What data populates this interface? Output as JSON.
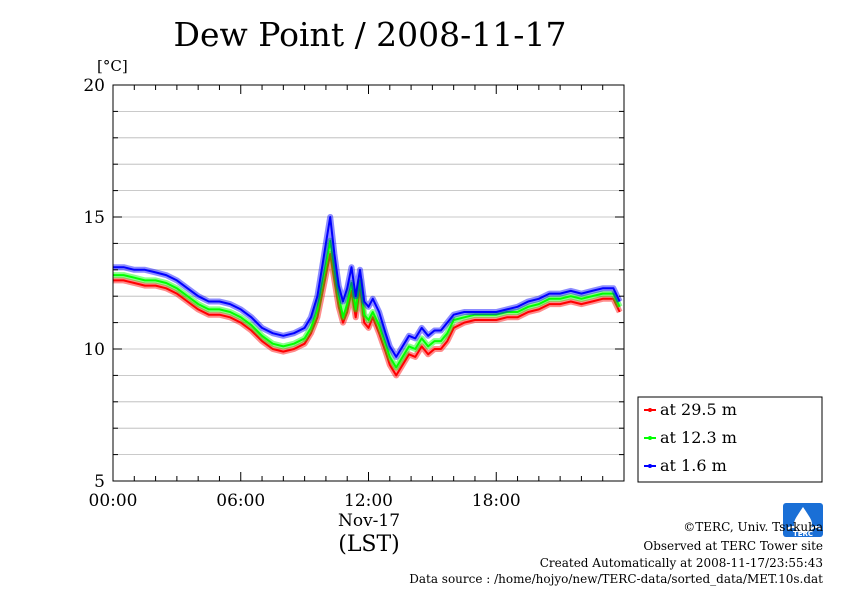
{
  "chart_data": {
    "type": "line",
    "title": "Dew Point / 2008-11-17",
    "unit_label": "[°C]",
    "xlabel_date": "Nov-17",
    "xlabel": "(LST)",
    "ylim": [
      5,
      20
    ],
    "xlim_hours": [
      0,
      24
    ],
    "y_ticks": [
      "5",
      "10",
      "15",
      "20"
    ],
    "y_tick_values": [
      5,
      10,
      15,
      20
    ],
    "x_ticks": [
      "00:00",
      "06:00",
      "12:00",
      "18:00"
    ],
    "x_tick_hours": [
      0,
      6,
      12,
      18
    ],
    "grid": true,
    "legend_position": "right",
    "series": [
      {
        "name": "at 29.5 m",
        "color": "#ff0000",
        "x": [
          0,
          0.5,
          1,
          1.5,
          2,
          2.5,
          3,
          3.5,
          4,
          4.5,
          5,
          5.5,
          6,
          6.5,
          7,
          7.5,
          8,
          8.5,
          9,
          9.3,
          9.6,
          9.8,
          10,
          10.2,
          10.4,
          10.6,
          10.8,
          11,
          11.2,
          11.4,
          11.6,
          11.8,
          12,
          12.2,
          12.5,
          12.8,
          13,
          13.3,
          13.6,
          13.9,
          14.2,
          14.5,
          14.8,
          15.1,
          15.4,
          15.7,
          16,
          16.5,
          17,
          17.5,
          18,
          18.5,
          19,
          19.5,
          20,
          20.5,
          21,
          21.5,
          22,
          22.5,
          23,
          23.5,
          23.8
        ],
        "y": [
          12.6,
          12.6,
          12.5,
          12.4,
          12.4,
          12.3,
          12.1,
          11.8,
          11.5,
          11.3,
          11.3,
          11.2,
          11.0,
          10.7,
          10.3,
          10.0,
          9.9,
          10.0,
          10.2,
          10.6,
          11.2,
          12.0,
          12.8,
          13.6,
          12.6,
          11.6,
          11.0,
          11.4,
          12.2,
          11.2,
          12.3,
          11.0,
          10.8,
          11.2,
          10.6,
          9.9,
          9.4,
          9.0,
          9.4,
          9.8,
          9.7,
          10.1,
          9.8,
          10.0,
          10.0,
          10.3,
          10.8,
          11.0,
          11.1,
          11.1,
          11.1,
          11.2,
          11.2,
          11.4,
          11.5,
          11.7,
          11.7,
          11.8,
          11.7,
          11.8,
          11.9,
          11.9,
          11.4
        ]
      },
      {
        "name": "at 12.3 m",
        "color": "#00ff00",
        "x": [
          0,
          0.5,
          1,
          1.5,
          2,
          2.5,
          3,
          3.5,
          4,
          4.5,
          5,
          5.5,
          6,
          6.5,
          7,
          7.5,
          8,
          8.5,
          9,
          9.3,
          9.6,
          9.8,
          10,
          10.2,
          10.4,
          10.6,
          10.8,
          11,
          11.2,
          11.4,
          11.6,
          11.8,
          12,
          12.2,
          12.5,
          12.8,
          13,
          13.3,
          13.6,
          13.9,
          14.2,
          14.5,
          14.8,
          15.1,
          15.4,
          15.7,
          16,
          16.5,
          17,
          17.5,
          18,
          18.5,
          19,
          19.5,
          20,
          20.5,
          21,
          21.5,
          22,
          22.5,
          23,
          23.5,
          23.8
        ],
        "y": [
          12.8,
          12.8,
          12.7,
          12.6,
          12.6,
          12.5,
          12.3,
          12.0,
          11.7,
          11.5,
          11.5,
          11.4,
          11.2,
          10.9,
          10.5,
          10.2,
          10.1,
          10.2,
          10.4,
          10.8,
          11.5,
          12.4,
          13.2,
          14.1,
          13.0,
          12.0,
          11.2,
          11.7,
          12.5,
          11.5,
          12.6,
          11.3,
          11.1,
          11.4,
          10.9,
          10.2,
          9.7,
          9.3,
          9.7,
          10.1,
          10.0,
          10.4,
          10.1,
          10.3,
          10.3,
          10.6,
          11.1,
          11.2,
          11.3,
          11.3,
          11.3,
          11.4,
          11.4,
          11.6,
          11.7,
          11.9,
          11.9,
          12.0,
          11.9,
          12.0,
          12.1,
          12.1,
          11.6
        ]
      },
      {
        "name": "at 1.6 m",
        "color": "#0000ff",
        "x": [
          0,
          0.5,
          1,
          1.5,
          2,
          2.5,
          3,
          3.5,
          4,
          4.5,
          5,
          5.5,
          6,
          6.5,
          7,
          7.5,
          8,
          8.5,
          9,
          9.3,
          9.6,
          9.8,
          10,
          10.2,
          10.4,
          10.6,
          10.8,
          11,
          11.2,
          11.4,
          11.6,
          11.8,
          12,
          12.2,
          12.5,
          12.8,
          13,
          13.3,
          13.6,
          13.9,
          14.2,
          14.5,
          14.8,
          15.1,
          15.4,
          15.7,
          16,
          16.5,
          17,
          17.5,
          18,
          18.5,
          19,
          19.5,
          20,
          20.5,
          21,
          21.5,
          22,
          22.5,
          23,
          23.5,
          23.8
        ],
        "y": [
          13.1,
          13.1,
          13.0,
          13.0,
          12.9,
          12.8,
          12.6,
          12.3,
          12.0,
          11.8,
          11.8,
          11.7,
          11.5,
          11.2,
          10.8,
          10.6,
          10.5,
          10.6,
          10.8,
          11.2,
          12.0,
          13.0,
          14.0,
          15.0,
          13.6,
          12.4,
          11.8,
          12.3,
          13.1,
          12.0,
          13.0,
          11.8,
          11.6,
          11.9,
          11.4,
          10.6,
          10.1,
          9.7,
          10.1,
          10.5,
          10.4,
          10.8,
          10.5,
          10.7,
          10.7,
          11.0,
          11.3,
          11.4,
          11.4,
          11.4,
          11.4,
          11.5,
          11.6,
          11.8,
          11.9,
          12.1,
          12.1,
          12.2,
          12.1,
          12.2,
          12.3,
          12.3,
          11.8
        ]
      }
    ]
  },
  "footer": {
    "line1": "©TERC, Univ. Tsukuba",
    "line2": "Observed at TERC Tower site",
    "line3": "Created Automatically at 2008-11-17/23:55:43",
    "line4": "Data source : /home/hojyo/new/TERC-data/sorted_data/MET.10s.dat"
  },
  "logo": {
    "text": "TERC",
    "color": "#1a6fd6"
  }
}
